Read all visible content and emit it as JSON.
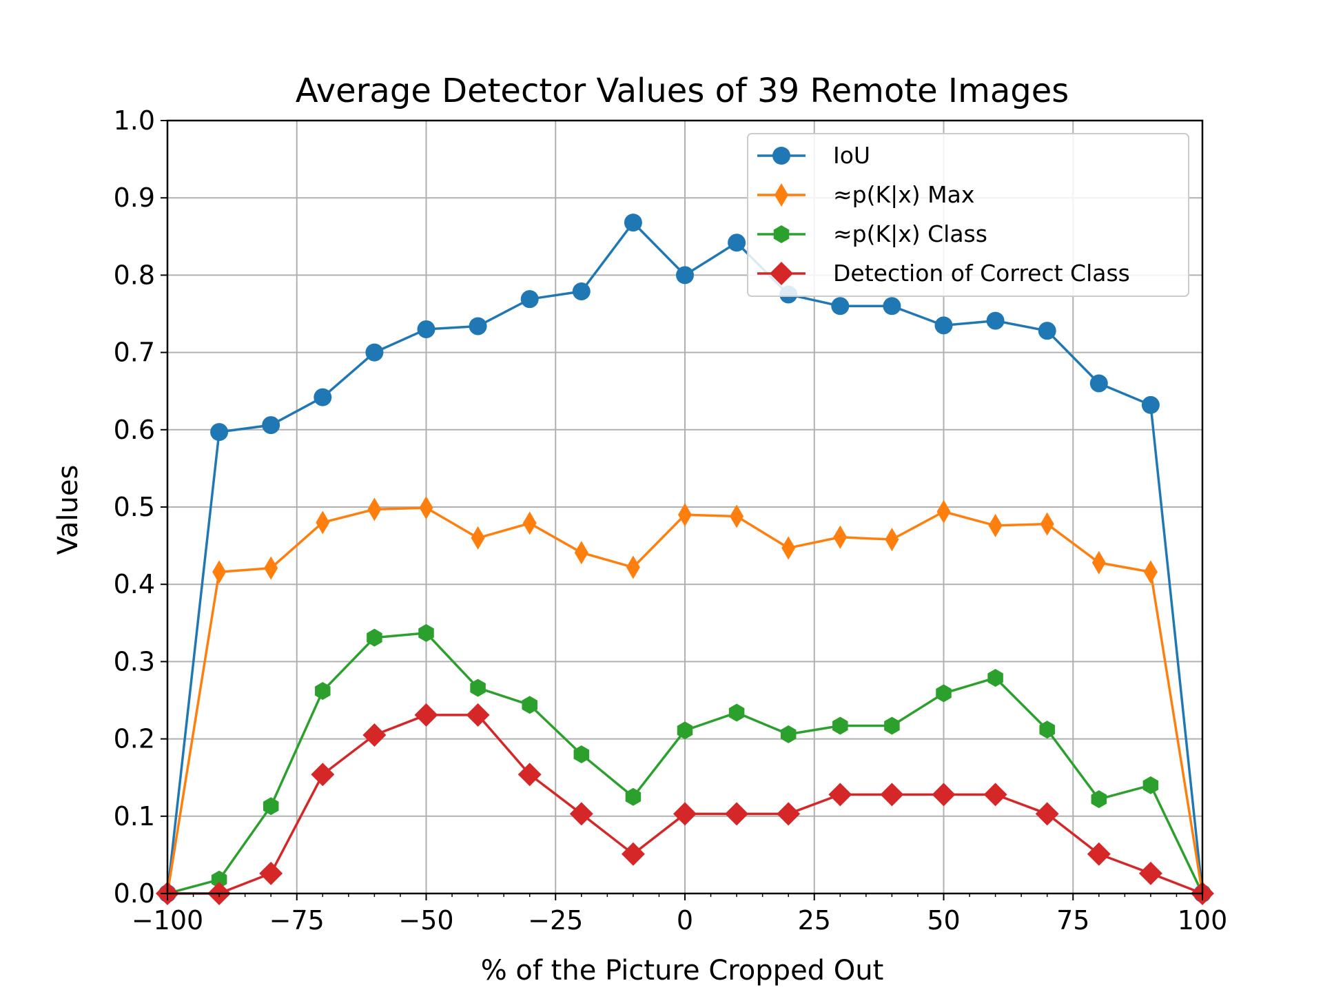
{
  "chart_data": {
    "type": "line",
    "title": "Average Detector Values of 39 Remote Images",
    "xlabel": "% of the Picture Cropped Out",
    "ylabel": "Values",
    "xlim": [
      -100,
      100
    ],
    "ylim": [
      0.0,
      1.0
    ],
    "grid": true,
    "legend_position": "top-right",
    "x_ticks": [
      -100,
      -75,
      -50,
      -25,
      0,
      25,
      50,
      75,
      100
    ],
    "x_tick_labels": [
      "−100",
      "−75",
      "−50",
      "−25",
      "0",
      "25",
      "50",
      "75",
      "100"
    ],
    "y_ticks": [
      0.0,
      0.1,
      0.2,
      0.3,
      0.4,
      0.5,
      0.6,
      0.7,
      0.8,
      0.9,
      1.0
    ],
    "y_tick_labels": [
      "0.0",
      "0.1",
      "0.2",
      "0.3",
      "0.4",
      "0.5",
      "0.6",
      "0.7",
      "0.8",
      "0.9",
      "1.0"
    ],
    "x": [
      -100,
      -90,
      -80,
      -70,
      -60,
      -50,
      -40,
      -30,
      -20,
      -10,
      0,
      10,
      20,
      30,
      40,
      50,
      60,
      70,
      80,
      90,
      100
    ],
    "series": [
      {
        "name": "IoU",
        "color": "#1f77b4",
        "marker": "circle",
        "values": [
          0.0,
          0.597,
          0.606,
          0.642,
          0.7,
          0.73,
          0.734,
          0.769,
          0.779,
          0.868,
          0.8,
          0.842,
          0.775,
          0.76,
          0.76,
          0.735,
          0.741,
          0.728,
          0.66,
          0.632,
          0.0
        ]
      },
      {
        "name": "≈p(K|x) Max",
        "color": "#ff7f0e",
        "marker": "thin-diamond",
        "values": [
          0.0,
          0.416,
          0.421,
          0.48,
          0.497,
          0.499,
          0.46,
          0.479,
          0.441,
          0.422,
          0.49,
          0.488,
          0.447,
          0.461,
          0.458,
          0.494,
          0.476,
          0.478,
          0.428,
          0.416,
          0.0
        ]
      },
      {
        "name": "≈p(K|x) Class",
        "color": "#2ca02c",
        "marker": "hexagon",
        "values": [
          0.0,
          0.018,
          0.113,
          0.262,
          0.331,
          0.337,
          0.266,
          0.244,
          0.18,
          0.125,
          0.211,
          0.234,
          0.206,
          0.217,
          0.217,
          0.259,
          0.279,
          0.212,
          0.122,
          0.14,
          0.0
        ]
      },
      {
        "name": "Detection of Correct Class",
        "color": "#d62728",
        "marker": "diamond",
        "values": [
          0.0,
          0.0,
          0.026,
          0.154,
          0.205,
          0.231,
          0.231,
          0.154,
          0.103,
          0.051,
          0.103,
          0.103,
          0.103,
          0.128,
          0.128,
          0.128,
          0.128,
          0.103,
          0.051,
          0.026,
          0.0
        ]
      }
    ]
  }
}
